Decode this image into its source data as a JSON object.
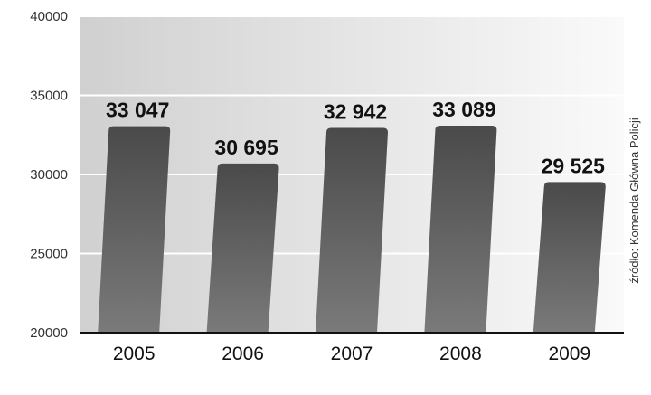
{
  "chart_data": {
    "type": "bar",
    "categories": [
      "2005",
      "2006",
      "2007",
      "2008",
      "2009"
    ],
    "values": [
      33047,
      30695,
      32942,
      33089,
      29525
    ],
    "value_labels": [
      "33 047",
      "30 695",
      "32 942",
      "33 089",
      "29 525"
    ],
    "yticks": [
      "20000",
      "25000",
      "30000",
      "35000",
      "40000"
    ],
    "ylim": [
      20000,
      40000
    ],
    "grid": true,
    "source": "źródło: Komenda Główna Policji"
  }
}
